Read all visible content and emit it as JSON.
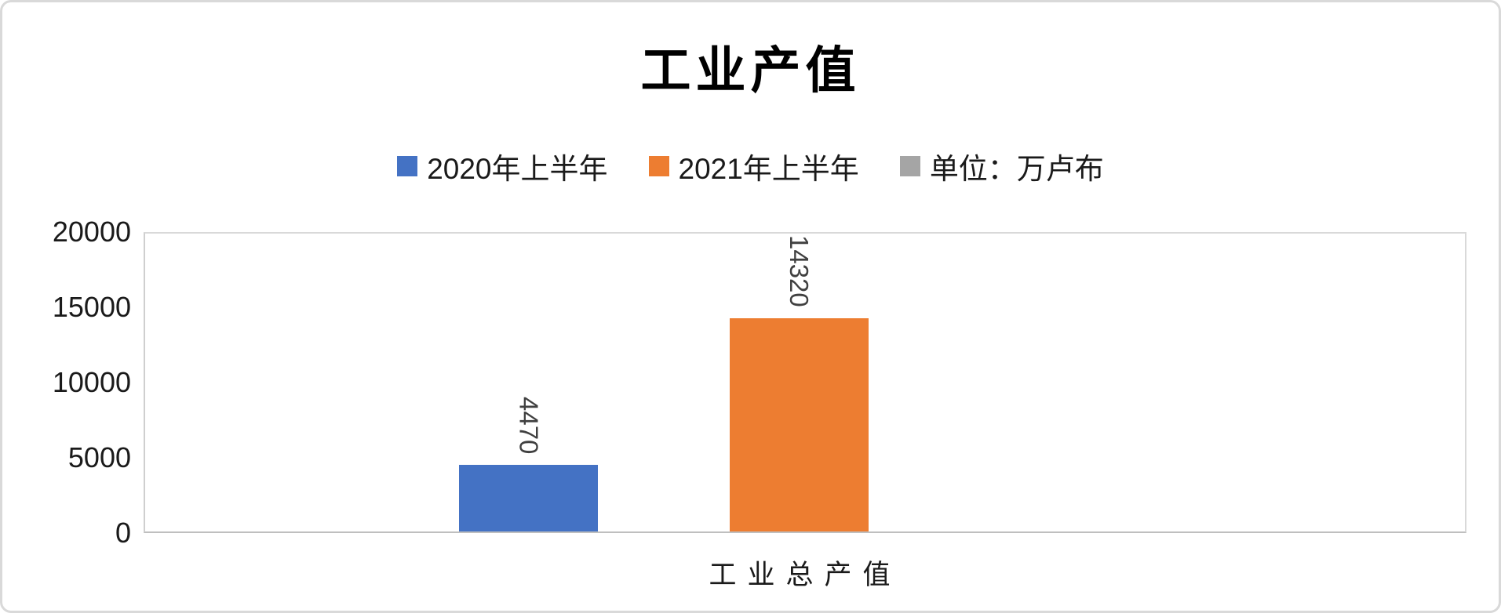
{
  "legend": [
    {
      "label": "2020年上半年",
      "color": "#4472C4"
    },
    {
      "label": "2021年上半年",
      "color": "#ED7D31"
    },
    {
      "label": "单位：万卢布",
      "color": "#A5A5A5"
    }
  ],
  "chart_data": {
    "type": "bar",
    "title": "工业产值",
    "categories": [
      "工业总产值"
    ],
    "series": [
      {
        "name": "2020年上半年",
        "color": "#4472C4",
        "values": [
          4470
        ]
      },
      {
        "name": "2021年上半年",
        "color": "#ED7D31",
        "values": [
          14320
        ]
      }
    ],
    "unit_label": "单位：万卢布",
    "xlabel": "",
    "ylabel": "",
    "ylim": [
      0,
      20000
    ],
    "yticks": [
      0,
      5000,
      10000,
      15000,
      20000
    ],
    "grid": false,
    "legend_position": "top",
    "data_label_rotation": "vertical"
  }
}
